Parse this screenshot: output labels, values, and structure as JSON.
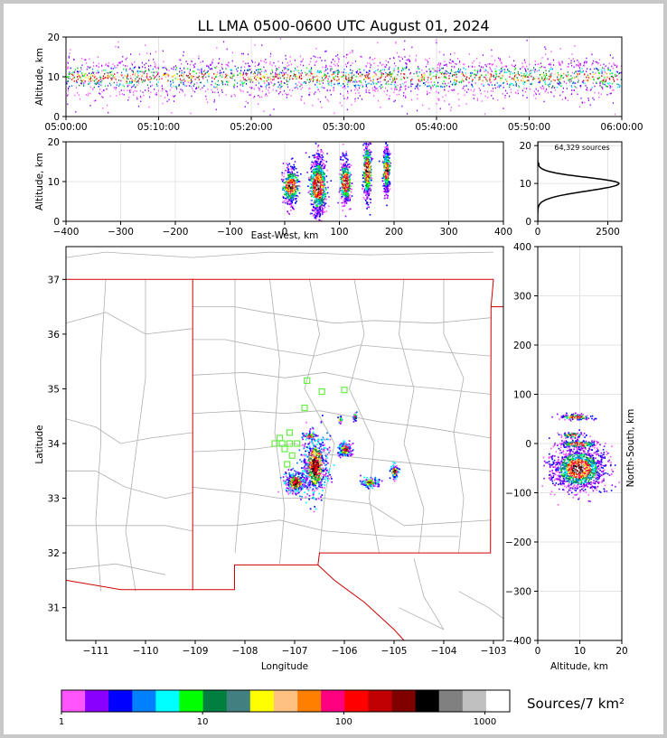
{
  "title": "LL LMA 0500-0600 UTC August 01, 2024",
  "colors": {
    "palette": [
      "#ff55ff",
      "#8a00ff",
      "#0000ff",
      "#0080ff",
      "#00ffff",
      "#00ff00",
      "#008040",
      "#408080",
      "#ffff00",
      "#ffc080",
      "#ff8000",
      "#ff0080",
      "#ff0000",
      "#c00000",
      "#800000",
      "#000000",
      "#808080",
      "#c0c0c0",
      "#ffffff"
    ],
    "state_border": "#d00000",
    "county_border": "#b0b0b0",
    "station_marker": "#66ee44"
  },
  "chart_data": [
    {
      "id": "time_height",
      "type": "scatter",
      "xlabel": "",
      "ylabel": "Altitude, km",
      "xticks": [
        "05:00:00",
        "05:10:00",
        "05:20:00",
        "05:30:00",
        "05:40:00",
        "05:50:00",
        "06:00:00"
      ],
      "xlim_minutes": [
        0,
        60
      ],
      "ylim": [
        0,
        20
      ],
      "yticks": [
        0,
        10,
        20
      ],
      "typical_altitude_km": [
        5,
        15
      ]
    },
    {
      "id": "ew_height",
      "type": "scatter",
      "xlabel": "East-West, km",
      "ylabel": "Altitude, km",
      "xlim": [
        -400,
        400
      ],
      "xticks": [
        -400,
        -300,
        -200,
        -100,
        0,
        100,
        200,
        300,
        400
      ],
      "ylim": [
        0,
        20
      ],
      "yticks": [
        0,
        10,
        20
      ],
      "clusters_km": [
        [
          10,
          9
        ],
        [
          60,
          9
        ],
        [
          110,
          10
        ],
        [
          150,
          13
        ],
        [
          185,
          13
        ]
      ]
    },
    {
      "id": "height_histogram",
      "type": "line",
      "annotation": "64,329 sources",
      "xlim": [
        0,
        3000
      ],
      "xticks": [
        0,
        2500
      ],
      "ylim": [
        0,
        21
      ],
      "yticks": [
        0,
        10,
        20
      ],
      "peak_altitude_km": 10,
      "peak_count": 2900
    },
    {
      "id": "plan_view",
      "type": "scatter",
      "xlabel": "Longitude",
      "ylabel": "Latitude",
      "xlim": [
        -111.6,
        -102.8
      ],
      "ylim": [
        30.4,
        37.6
      ],
      "xticks": [
        -111,
        -110,
        -109,
        -108,
        -107,
        -106,
        -105,
        -104,
        -103
      ],
      "yticks": [
        31,
        32,
        33,
        34,
        35,
        36,
        37
      ],
      "source_clusters": [
        {
          "lon": -106.6,
          "lat": 33.6
        },
        {
          "lon": -107.0,
          "lat": 33.3
        },
        {
          "lon": -106.0,
          "lat": 33.9
        },
        {
          "lon": -105.5,
          "lat": 33.3
        },
        {
          "lon": -105.0,
          "lat": 33.5
        },
        {
          "lon": -106.7,
          "lat": 34.15
        },
        {
          "lon": -105.8,
          "lat": 34.5
        },
        {
          "lon": -106.1,
          "lat": 34.45
        }
      ],
      "stations": [
        {
          "lon": -106.75,
          "lat": 35.15
        },
        {
          "lon": -106.45,
          "lat": 34.95
        },
        {
          "lon": -106.0,
          "lat": 34.98
        },
        {
          "lon": -106.8,
          "lat": 34.65
        },
        {
          "lon": -107.1,
          "lat": 34.2
        },
        {
          "lon": -107.3,
          "lat": 34.1
        },
        {
          "lon": -107.4,
          "lat": 34.0
        },
        {
          "lon": -107.25,
          "lat": 34.0
        },
        {
          "lon": -107.1,
          "lat": 34.0
        },
        {
          "lon": -106.95,
          "lat": 34.0
        },
        {
          "lon": -107.2,
          "lat": 33.9
        },
        {
          "lon": -107.05,
          "lat": 33.78
        },
        {
          "lon": -107.15,
          "lat": 33.62
        }
      ]
    },
    {
      "id": "ns_height",
      "type": "scatter",
      "xlabel": "Altitude, km",
      "ylabel": "North-South, km",
      "xlim": [
        0,
        20
      ],
      "xticks": [
        0,
        10,
        20
      ],
      "ylim": [
        -400,
        400
      ],
      "yticks": [
        -400,
        -300,
        -200,
        -100,
        0,
        100,
        200,
        300,
        400
      ]
    },
    {
      "id": "colorbar",
      "type": "heatmap",
      "label": "Sources/7 km²",
      "scale": "log",
      "range": [
        1,
        1500
      ],
      "tick_values": [
        1,
        10,
        100,
        1000
      ],
      "tick_labels": [
        "1",
        "10",
        "100",
        "1000"
      ]
    }
  ]
}
